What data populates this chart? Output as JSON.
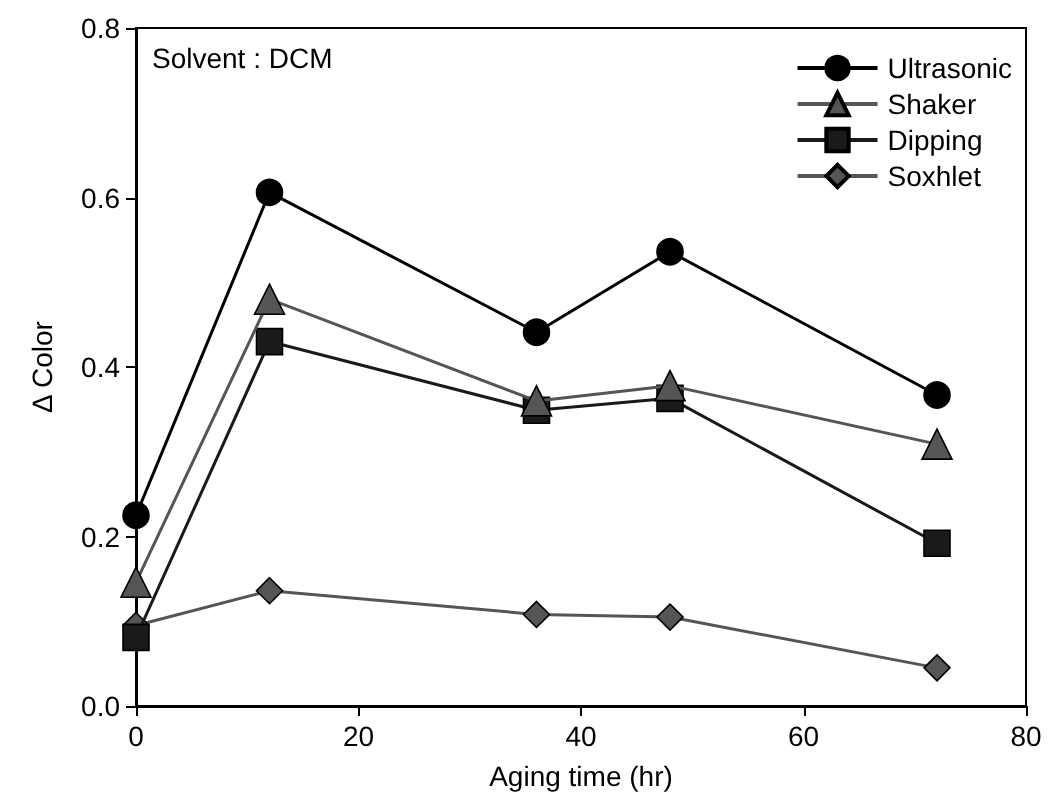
{
  "chart_data": {
    "type": "line",
    "xlabel": "Aging time (hr)",
    "ylabel": "Δ Color",
    "annotations": [
      "Solvent : DCM"
    ],
    "x": [
      0,
      12,
      36,
      48,
      72
    ],
    "series": [
      {
        "name": "Ultrasonic",
        "color": "#000000",
        "marker": "circle",
        "values": [
          0.225,
          0.606,
          0.441,
          0.536,
          0.367
        ]
      },
      {
        "name": "Shaker",
        "color": "#555555",
        "marker": "triangle",
        "values": [
          0.146,
          0.48,
          0.36,
          0.378,
          0.309
        ]
      },
      {
        "name": "Dipping",
        "color": "#1a1a1a",
        "marker": "square",
        "values": [
          0.081,
          0.43,
          0.349,
          0.363,
          0.192
        ]
      },
      {
        "name": "Soxhlet",
        "color": "#555555",
        "marker": "diamond",
        "values": [
          0.095,
          0.136,
          0.108,
          0.105,
          0.045
        ]
      }
    ],
    "xlim": [
      0,
      80
    ],
    "xticks": [
      0,
      20,
      40,
      60,
      80
    ],
    "ylim": [
      0,
      0.8
    ],
    "yticks": [
      {
        "value": 0,
        "label": "0.0"
      },
      {
        "value": 0.2,
        "label": "0.2"
      },
      {
        "value": 0.4,
        "label": "0.4"
      },
      {
        "value": 0.6,
        "label": "0.6"
      },
      {
        "value": 0.8,
        "label": "0.8"
      }
    ],
    "grid": false,
    "legend": "top right",
    "line_style": "solid"
  }
}
